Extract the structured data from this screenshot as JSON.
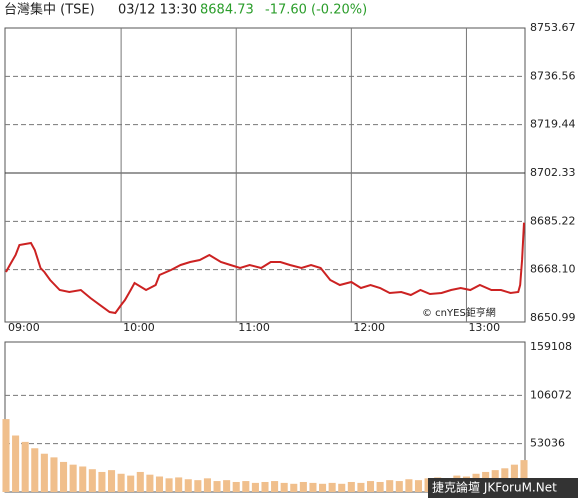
{
  "header": {
    "name": "台灣集中 (TSE)",
    "time": "03/12 13:30",
    "price": "8684.73",
    "change": "-17.60 (-0.20%)"
  },
  "watermarks": {
    "source": "© cnYES鉅亨網",
    "forum": "捷克論壇 JKForuM.Net"
  },
  "chart_data": [
    {
      "type": "line",
      "color": "#cc2222",
      "x": [
        0,
        2,
        5,
        7,
        13,
        15,
        18,
        20,
        23,
        28,
        33,
        39,
        44,
        49,
        54,
        57,
        60,
        62,
        65,
        67,
        73,
        78,
        80,
        86,
        91,
        96,
        101,
        106,
        112,
        117,
        122,
        127,
        133,
        138,
        143,
        148,
        154,
        159,
        164,
        169,
        174,
        180,
        185,
        190,
        195,
        200,
        206,
        211,
        216,
        221,
        227,
        232,
        237,
        242,
        247,
        253,
        258,
        263,
        267,
        268,
        269,
        270
      ],
      "values": [
        8667.28,
        8669.76,
        8673.3,
        8676.84,
        8677.55,
        8675.07,
        8668.69,
        8667.28,
        8664.44,
        8660.9,
        8660.2,
        8660.9,
        8658.07,
        8655.59,
        8653.11,
        8652.76,
        8655.59,
        8657.36,
        8660.9,
        8663.38,
        8660.9,
        8662.67,
        8666.21,
        8667.99,
        8669.76,
        8670.82,
        8671.53,
        8673.3,
        8670.82,
        8669.76,
        8668.69,
        8669.76,
        8668.69,
        8670.82,
        8670.82,
        8669.76,
        8668.69,
        8669.76,
        8668.69,
        8664.44,
        8662.67,
        8663.74,
        8661.61,
        8662.67,
        8661.61,
        8659.84,
        8660.2,
        8659.13,
        8660.9,
        8659.49,
        8659.84,
        8660.9,
        8661.61,
        8660.9,
        8662.67,
        8660.9,
        8660.9,
        8659.84,
        8660.2,
        8662.67,
        8671.53,
        8684.73
      ],
      "xlim": [
        0,
        270
      ],
      "xticks": [
        {
          "value": 0,
          "label": "09:00"
        },
        {
          "value": 60,
          "label": "10:00"
        },
        {
          "value": 120,
          "label": "11:00"
        },
        {
          "value": 180,
          "label": "12:00"
        },
        {
          "value": 240,
          "label": "13:00"
        }
      ],
      "ylim": [
        8650.99,
        8753.67
      ],
      "yticks": [
        8650.99,
        {
          "value": 8668.1,
          "label": "8668.10"
        },
        8685.22,
        8702.33,
        8719.44,
        8736.56,
        8753.67
      ],
      "reference_line": 8702.33,
      "grid": true
    },
    {
      "type": "bar",
      "color": "#f0bf8c",
      "x": [
        0,
        5,
        10,
        15,
        20,
        25,
        30,
        35,
        40,
        45,
        50,
        55,
        60,
        65,
        70,
        75,
        80,
        85,
        90,
        95,
        100,
        105,
        110,
        115,
        120,
        125,
        130,
        135,
        140,
        145,
        150,
        155,
        160,
        165,
        170,
        175,
        180,
        185,
        190,
        195,
        200,
        205,
        210,
        215,
        220,
        225,
        230,
        235,
        240,
        245,
        250,
        255,
        260,
        265,
        270
      ],
      "values": [
        80000,
        62000,
        55000,
        48000,
        42000,
        38000,
        33000,
        30000,
        28000,
        25000,
        22000,
        24000,
        20000,
        18000,
        22000,
        19000,
        17000,
        15000,
        16000,
        14000,
        13000,
        15000,
        12000,
        13000,
        11000,
        12000,
        10000,
        11000,
        12000,
        10000,
        9000,
        11000,
        10000,
        9000,
        10000,
        9000,
        11000,
        10000,
        12000,
        11000,
        13000,
        12000,
        14000,
        13000,
        15000,
        16000,
        15000,
        18000,
        17000,
        20000,
        22000,
        24000,
        26000,
        30000,
        35000
      ],
      "xlim": [
        0,
        270
      ],
      "ylim": [
        0,
        159108
      ],
      "yticks": [
        53036,
        106072,
        159108
      ],
      "grid": true
    }
  ]
}
